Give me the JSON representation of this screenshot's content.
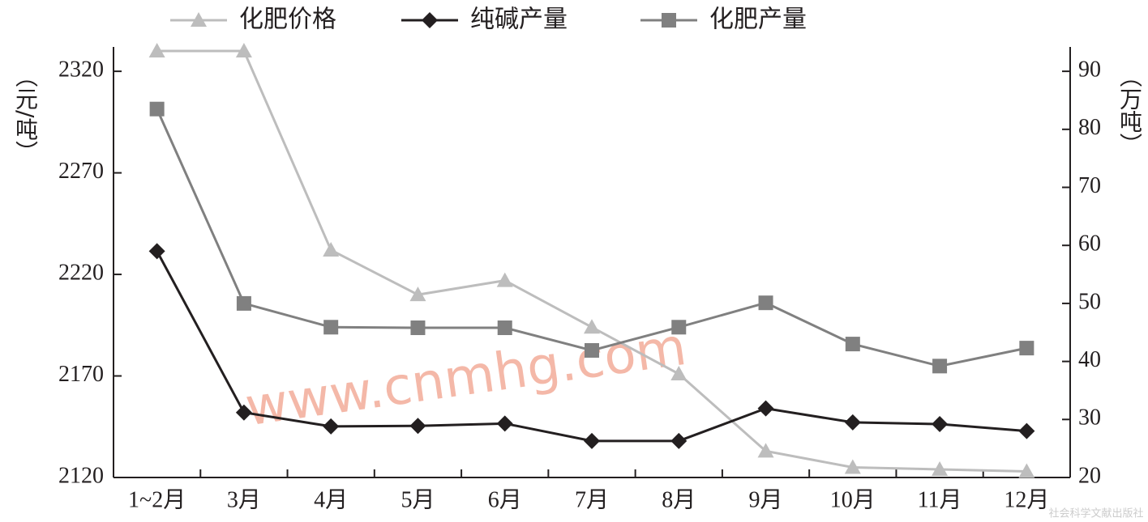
{
  "chart_data": {
    "type": "line",
    "categories": [
      "1~2月",
      "3月",
      "4月",
      "5月",
      "6月",
      "7月",
      "8月",
      "9月",
      "10月",
      "11月",
      "12月"
    ],
    "series": [
      {
        "name": "化肥价格",
        "color": "#bdbdbd",
        "marker": "triangle",
        "axis": "y",
        "values": [
          2330,
          2330,
          2232,
          2210,
          2217,
          2194,
          2171,
          2133,
          2125,
          2124,
          2123
        ]
      },
      {
        "name": "纯碱产量",
        "color": "#231f20",
        "marker": "diamond",
        "axis": "y2",
        "values": [
          59.0,
          31.2,
          28.8,
          28.9,
          29.3,
          26.3,
          26.3,
          31.9,
          29.5,
          29.2,
          28.0
        ]
      },
      {
        "name": "化肥产量",
        "color": "#808080",
        "marker": "square",
        "axis": "y2",
        "values": [
          83.5,
          50.0,
          45.9,
          45.8,
          45.8,
          41.9,
          45.9,
          50.1,
          43.0,
          39.2,
          42.3
        ]
      }
    ],
    "ylabel": "（元/吨）",
    "y2label": "（万吨）",
    "ylim": [
      2120,
      2332
    ],
    "yticks": [
      2120,
      2170,
      2220,
      2270,
      2320
    ],
    "y2lim": [
      20,
      94.2
    ],
    "y2ticks": [
      20,
      30,
      40,
      50,
      60,
      70,
      80,
      90
    ],
    "annotations": [
      "www.cnmhg.com",
      "社会科学文献出版社"
    ]
  }
}
